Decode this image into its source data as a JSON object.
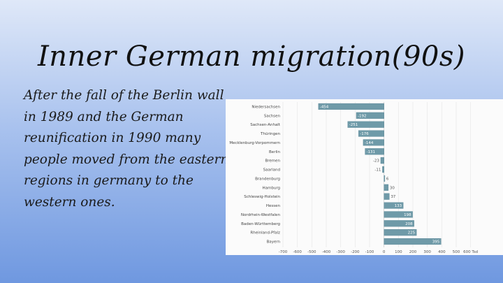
{
  "slide": {
    "title": "Inner German migration(90s)",
    "body": "After the fall of the Berlin wall in 1989 and the German reunification in 1990 many people moved from the eastern regions in germany to the western ones."
  },
  "colors": {
    "bar": "#6f9aa8",
    "bar_stroke": "#5b8797",
    "background_top": "#dfe8f8",
    "background_bottom": "#6f98e0"
  },
  "chart_data": {
    "type": "bar",
    "orientation": "horizontal",
    "title": "",
    "xlabel": "",
    "ylabel": "",
    "categories": [
      "Niedersachsen",
      "Sachsen",
      "Sachsen-Anhalt",
      "Thüringen",
      "Mecklenburg-Vorpommern",
      "Berlin",
      "Bremen",
      "Saarland",
      "Brandenburg",
      "Hamburg",
      "Schleswig-Holstein",
      "Hessen",
      "Nordrhein-Westfalen",
      "Baden-Württemberg",
      "Rheinland-Pfalz",
      "Bayern"
    ],
    "values": [
      -454,
      -192,
      -251,
      -176,
      -144,
      -131,
      -23,
      -11,
      6,
      30,
      37,
      133,
      198,
      208,
      225,
      395
    ],
    "value_labels": [
      "-454",
      "-192",
      "-251",
      "-176",
      "-144",
      "-131",
      "-23",
      "-11",
      "6",
      "30",
      "37",
      "133",
      "198",
      "208",
      "225",
      "395"
    ],
    "xlim": [
      -700,
      800
    ],
    "xticks": [
      -700,
      -600,
      -500,
      -400,
      -300,
      -200,
      -100,
      0,
      100,
      200,
      300,
      400,
      500,
      600
    ],
    "xtick_labels": [
      "-700",
      "-600",
      "-500",
      "-400",
      "-300",
      "-200",
      "-100",
      "0",
      "100",
      "200",
      "300",
      "400",
      "500",
      "600 Tsd"
    ],
    "grid": true,
    "legend": "none"
  }
}
